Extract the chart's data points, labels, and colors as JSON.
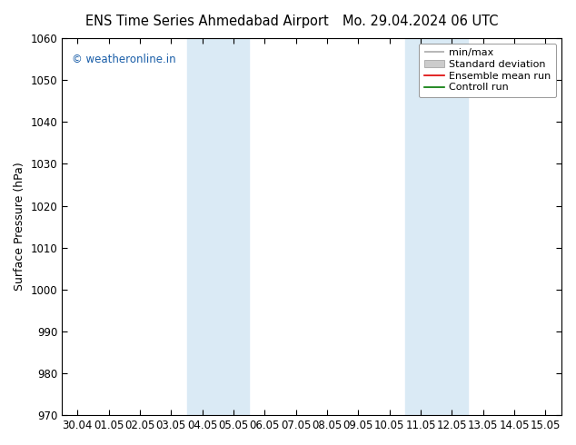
{
  "title_left": "ENS Time Series Ahmedabad Airport",
  "title_right": "Mo. 29.04.2024 06 UTC",
  "ylabel": "Surface Pressure (hPa)",
  "ylim": [
    970,
    1060
  ],
  "yticks": [
    970,
    980,
    990,
    1000,
    1010,
    1020,
    1030,
    1040,
    1050,
    1060
  ],
  "xlabels": [
    "30.04",
    "01.05",
    "02.05",
    "03.05",
    "04.05",
    "05.05",
    "06.05",
    "07.05",
    "08.05",
    "09.05",
    "10.05",
    "11.05",
    "12.05",
    "13.05",
    "14.05",
    "15.05"
  ],
  "shaded_bands": [
    {
      "xstart": 4,
      "xend": 5
    },
    {
      "xstart": 5,
      "xend": 6
    },
    {
      "xstart": 11,
      "xend": 12
    },
    {
      "xstart": 12,
      "xend": 13
    }
  ],
  "shade_color": "#daeaf5",
  "watermark": "© weatheronline.in",
  "watermark_color": "#1a5ea8",
  "legend_labels": [
    "min/max",
    "Standard deviation",
    "Ensemble mean run",
    "Controll run"
  ],
  "background_color": "#ffffff",
  "title_fontsize": 10.5,
  "ylabel_fontsize": 9,
  "tick_fontsize": 8.5,
  "watermark_fontsize": 8.5,
  "legend_fontsize": 8
}
